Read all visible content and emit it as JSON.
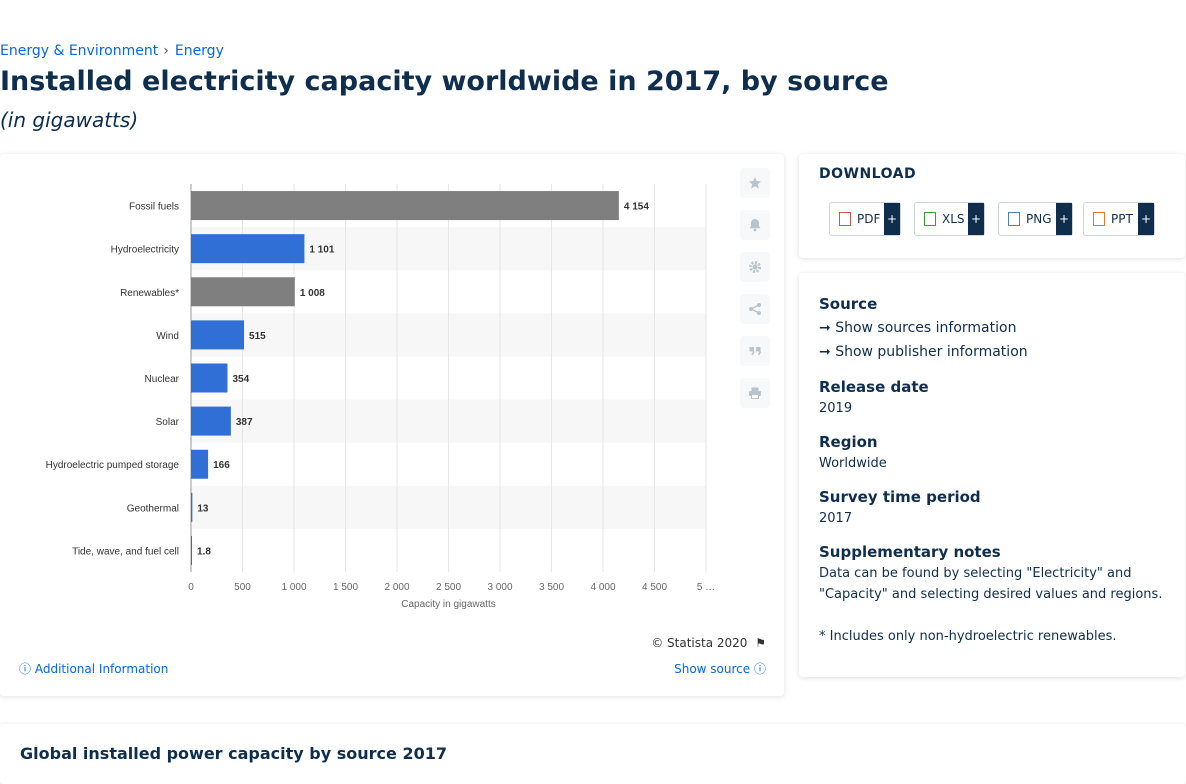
{
  "breadcrumb": [
    "Energy & Environment",
    "Energy"
  ],
  "page_title": "Installed electricity capacity worldwide in 2017, by source",
  "subtitle": "(in gigawatts)",
  "chart_data": {
    "type": "bar",
    "orientation": "horizontal",
    "categories": [
      "Fossil fuels",
      "Hydroelectricity",
      "Renewables*",
      "Wind",
      "Nuclear",
      "Solar",
      "Hydroelectric pumped storage",
      "Geothermal",
      "Tide, wave, and fuel cell"
    ],
    "values": [
      4154,
      1101,
      1008,
      515,
      354,
      387,
      166,
      13,
      1.8
    ],
    "value_labels": [
      "4 154",
      "1 101",
      "1 008",
      "515",
      "354",
      "387",
      "166",
      "13",
      "1.8"
    ],
    "bar_colors": [
      "#7f7f7f",
      "#2f6fd6",
      "#7f7f7f",
      "#2f6fd6",
      "#2f6fd6",
      "#2f6fd6",
      "#2f6fd6",
      "#2f6fd6",
      "#2f6fd6"
    ],
    "xlabel": "Capacity in gigawatts",
    "xlim": [
      0,
      5000
    ],
    "x_ticks": [
      "0",
      "500",
      "1 000",
      "1 500",
      "2 000",
      "2 500",
      "3 000",
      "3 500",
      "4 000",
      "4 500",
      "5 …"
    ],
    "grid": "vertical"
  },
  "chart_footer": {
    "copyright": "© Statista 2020",
    "additional_info": "Additional Information",
    "show_source": "Show source"
  },
  "toolbar_icons": [
    "star-icon",
    "bell-icon",
    "gear-icon",
    "share-icon",
    "quote-icon",
    "print-icon"
  ],
  "download": {
    "title": "DOWNLOAD",
    "buttons": [
      {
        "label": "PDF",
        "color": "#d9534f"
      },
      {
        "label": "XLS",
        "color": "#3c9a3c"
      },
      {
        "label": "PNG",
        "color": "#4a7fc1"
      },
      {
        "label": "PPT",
        "color": "#e07b2a"
      }
    ],
    "plus": "+"
  },
  "info": {
    "source_heading": "Source",
    "show_sources": "Show sources information",
    "show_publisher": "Show publisher information",
    "release_heading": "Release date",
    "release_value": "2019",
    "region_heading": "Region",
    "region_value": "Worldwide",
    "survey_heading": "Survey time period",
    "survey_value": "2017",
    "notes_heading": "Supplementary notes",
    "notes_line1": "Data can be found by selecting \"Electricity\" and",
    "notes_line2": "\"Capacity\" and selecting desired values and regions.",
    "notes_line3": "* Includes only non-hydroelectric renewables."
  },
  "related_title": "Global installed power capacity by source 2017"
}
